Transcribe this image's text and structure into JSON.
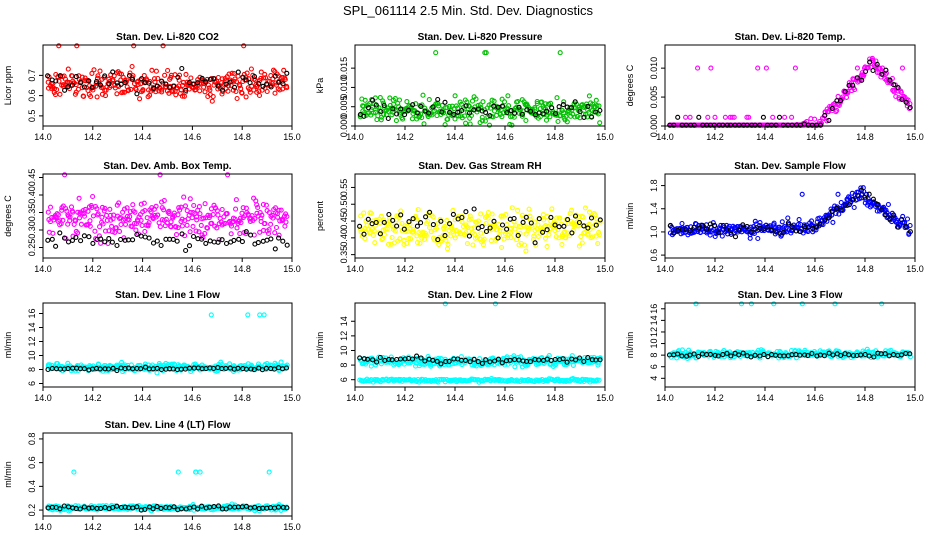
{
  "figure_title": "SPL_061114  2.5 Min. Std. Dev. Diagnostics",
  "colors": {
    "red": "#ff0000",
    "green": "#00c000",
    "magenta": "#ff00ff",
    "yellow": "#ffff00",
    "blue": "#0000ff",
    "cyan": "#00ffff",
    "overlay": "#000000"
  },
  "chart_data": [
    {
      "type": "scatter",
      "title": "Stan. Dev. Li-820 CO2",
      "ylabel": "Licor ppm",
      "xlim": [
        14.0,
        15.0
      ],
      "ylim": [
        0.45,
        0.85
      ],
      "xticks": [
        14.0,
        14.2,
        14.4,
        14.6,
        14.8,
        15.0
      ],
      "xtick_labels": [
        "14.0",
        "14.2",
        "14.4",
        "14.6",
        "14.8",
        "15.0"
      ],
      "yticks": [
        0.5,
        0.6,
        0.7
      ],
      "ytick_labels": [
        "0.5",
        "0.6",
        "0.7"
      ],
      "color": "red",
      "series": [
        {
          "name": "main",
          "level": 0.66,
          "spread": 0.065,
          "n": 320
        },
        {
          "name": "overlay",
          "level": 0.67,
          "spread": 0.05,
          "n": 60
        }
      ]
    },
    {
      "type": "scatter",
      "title": "Stan. Dev. Li-820 Pressure",
      "ylabel": "kPa",
      "xlim": [
        14.0,
        15.0
      ],
      "ylim": [
        0.0,
        0.021
      ],
      "xticks": [
        14.0,
        14.2,
        14.4,
        14.6,
        14.8,
        15.0
      ],
      "xtick_labels": [
        "14.0",
        "14.2",
        "14.4",
        "14.6",
        "14.8",
        "15.0"
      ],
      "yticks": [
        0.0,
        0.005,
        0.01,
        0.015
      ],
      "ytick_labels": [
        "0.000",
        "0.005",
        "0.010",
        "0.015"
      ],
      "color": "green",
      "series": [
        {
          "name": "main",
          "level": 0.004,
          "spread": 0.003,
          "n": 320
        },
        {
          "name": "overlay",
          "level": 0.004,
          "spread": 0.002,
          "n": 60
        }
      ]
    },
    {
      "type": "scatter",
      "title": "Stan. Dev. Li-820 Temp.",
      "ylabel": "degrees C",
      "xlim": [
        14.0,
        15.0
      ],
      "ylim": [
        0.0,
        0.014
      ],
      "xticks": [
        14.0,
        14.2,
        14.4,
        14.6,
        14.8,
        15.0
      ],
      "xtick_labels": [
        "14.0",
        "14.2",
        "14.4",
        "14.6",
        "14.8",
        "15.0"
      ],
      "yticks": [
        0.0,
        0.005,
        0.01
      ],
      "ytick_labels": [
        "0.000",
        "0.005",
        "0.010"
      ],
      "color": "magenta",
      "series": [
        {
          "name": "main",
          "level": 0.0,
          "spread": 0.002,
          "n": 320
        },
        {
          "name": "overlay",
          "level": 0.0,
          "spread": 0.002,
          "n": 60
        }
      ]
    },
    {
      "type": "scatter",
      "title": "Stan. Dev. Amb. Box Temp.",
      "ylabel": "degrees C",
      "xlim": [
        14.0,
        15.0
      ],
      "ylim": [
        0.22,
        0.46
      ],
      "xticks": [
        14.0,
        14.2,
        14.4,
        14.6,
        14.8,
        15.0
      ],
      "xtick_labels": [
        "14.0",
        "14.2",
        "14.4",
        "14.6",
        "14.8",
        "15.0"
      ],
      "yticks": [
        0.25,
        0.3,
        0.35,
        0.4,
        0.45
      ],
      "ytick_labels": [
        "0.25",
        "0.30",
        "0.35",
        "0.40",
        "0.45"
      ],
      "color": "magenta",
      "series": [
        {
          "name": "main",
          "level": 0.33,
          "spread": 0.05,
          "n": 320
        },
        {
          "name": "overlay",
          "level": 0.27,
          "spread": 0.02,
          "n": 60
        }
      ]
    },
    {
      "type": "scatter",
      "title": "Stan. Dev. Gas Stream RH",
      "ylabel": "percent",
      "xlim": [
        14.0,
        15.0
      ],
      "ylim": [
        0.34,
        0.59
      ],
      "xticks": [
        14.0,
        14.2,
        14.4,
        14.6,
        14.8,
        15.0
      ],
      "xtick_labels": [
        "14.0",
        "14.2",
        "14.4",
        "14.6",
        "14.8",
        "15.0"
      ],
      "yticks": [
        0.35,
        0.4,
        0.45,
        0.5,
        0.55
      ],
      "ytick_labels": [
        "0.35",
        "0.40",
        "0.45",
        "0.50",
        "0.55"
      ],
      "color": "yellow",
      "series": [
        {
          "name": "main",
          "level": 0.43,
          "spread": 0.05,
          "n": 320
        },
        {
          "name": "overlay",
          "level": 0.44,
          "spread": 0.04,
          "n": 60
        }
      ]
    },
    {
      "type": "scatter",
      "title": "Stan. Dev. Sample Flow",
      "ylabel": "ml/min",
      "xlim": [
        14.0,
        15.0
      ],
      "ylim": [
        0.55,
        2.0
      ],
      "xticks": [
        14.0,
        14.2,
        14.4,
        14.6,
        14.8,
        15.0
      ],
      "xtick_labels": [
        "14.0",
        "14.2",
        "14.4",
        "14.6",
        "14.8",
        "15.0"
      ],
      "yticks": [
        0.6,
        1.0,
        1.4,
        1.8
      ],
      "ytick_labels": [
        "0.6",
        "1.0",
        "1.4",
        "1.8"
      ],
      "color": "blue",
      "series": [
        {
          "name": "main",
          "level": 1.05,
          "spread": 0.12,
          "n": 320
        },
        {
          "name": "overlay",
          "level": 1.05,
          "spread": 0.1,
          "n": 60
        }
      ]
    },
    {
      "type": "scatter",
      "title": "Stan. Dev. Line 1 Flow",
      "ylabel": "ml/min",
      "xlim": [
        14.0,
        15.0
      ],
      "ylim": [
        5.5,
        17.5
      ],
      "xticks": [
        14.0,
        14.2,
        14.4,
        14.6,
        14.8,
        15.0
      ],
      "xtick_labels": [
        "14.0",
        "14.2",
        "14.4",
        "14.6",
        "14.8",
        "15.0"
      ],
      "yticks": [
        6,
        8,
        10,
        12,
        14,
        16
      ],
      "ytick_labels": [
        "6",
        "8",
        "10",
        "12",
        "14",
        "16"
      ],
      "color": "cyan",
      "series": [
        {
          "name": "main",
          "level": 8.3,
          "spread": 0.5,
          "n": 320
        },
        {
          "name": "overlay",
          "level": 8.1,
          "spread": 0.2,
          "n": 60
        }
      ]
    },
    {
      "type": "scatter",
      "title": "Stan. Dev. Line 2 Flow",
      "ylabel": "ml/min",
      "xlim": [
        14.0,
        15.0
      ],
      "ylim": [
        5.0,
        16.5
      ],
      "xticks": [
        14.0,
        14.2,
        14.4,
        14.6,
        14.8,
        15.0
      ],
      "xtick_labels": [
        "14.0",
        "14.2",
        "14.4",
        "14.6",
        "14.8",
        "15.0"
      ],
      "yticks": [
        6,
        8,
        10,
        12,
        14
      ],
      "ytick_labels": [
        "6",
        "8",
        "10",
        "12",
        "14"
      ],
      "color": "cyan",
      "series": [
        {
          "name": "main",
          "level": 8.5,
          "spread": 0.6,
          "n": 320
        },
        {
          "name": "lower_band",
          "level": 5.9,
          "spread": 0.2,
          "n": 200
        },
        {
          "name": "overlay",
          "level": 8.7,
          "spread": 0.4,
          "n": 60
        }
      ]
    },
    {
      "type": "scatter",
      "title": "Stan. Dev. Line 3 Flow",
      "ylabel": "ml/min",
      "xlim": [
        14.0,
        15.0
      ],
      "ylim": [
        2.5,
        17.0
      ],
      "xticks": [
        14.0,
        14.2,
        14.4,
        14.6,
        14.8,
        15.0
      ],
      "xtick_labels": [
        "14.0",
        "14.2",
        "14.4",
        "14.6",
        "14.8",
        "15.0"
      ],
      "yticks": [
        4,
        6,
        8,
        10,
        12,
        14,
        16
      ],
      "ytick_labels": [
        "4",
        "6",
        "8",
        "10",
        "12",
        "14",
        "16"
      ],
      "color": "cyan",
      "series": [
        {
          "name": "main",
          "level": 8.2,
          "spread": 0.6,
          "n": 320
        },
        {
          "name": "overlay",
          "level": 8.0,
          "spread": 0.3,
          "n": 60
        }
      ]
    },
    {
      "type": "scatter",
      "title": "Stan. Dev. Line 4 (LT) Flow",
      "ylabel": "ml/min",
      "xlim": [
        14.0,
        15.0
      ],
      "ylim": [
        0.15,
        0.85
      ],
      "xticks": [
        14.0,
        14.2,
        14.4,
        14.6,
        14.8,
        15.0
      ],
      "xtick_labels": [
        "14.0",
        "14.2",
        "14.4",
        "14.6",
        "14.8",
        "15.0"
      ],
      "yticks": [
        0.2,
        0.4,
        0.6,
        0.8
      ],
      "ytick_labels": [
        "0.2",
        "0.4",
        "0.6",
        "0.8"
      ],
      "color": "cyan",
      "series": [
        {
          "name": "main",
          "level": 0.22,
          "spread": 0.02,
          "n": 320
        },
        {
          "name": "overlay",
          "level": 0.22,
          "spread": 0.015,
          "n": 60
        }
      ]
    }
  ]
}
